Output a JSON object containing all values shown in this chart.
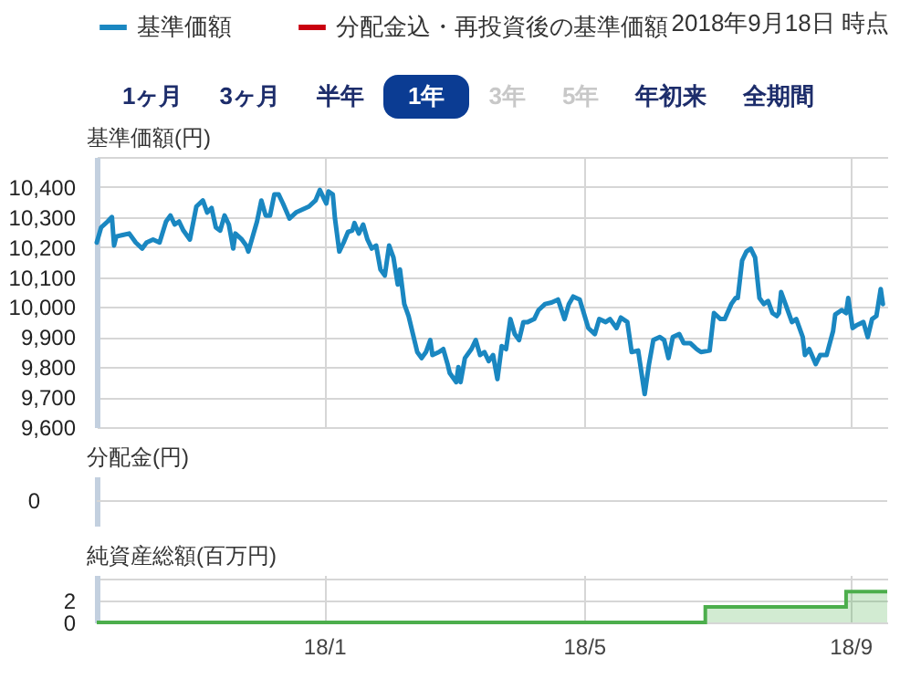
{
  "chart_data": [
    {
      "type": "line",
      "ylabel": "基準価額(円)",
      "legend": "top left",
      "grid": true,
      "tick_labels": "y",
      "annotations": [
        "2018年9月18日 時点",
        "1ヶ月",
        "3ヶ月",
        "半年",
        "1年",
        "3年",
        "5年",
        "年初来",
        "全期間"
      ],
      "xlim": [
        "2017-09-18",
        "2018-09-18"
      ],
      "xticks": [
        {
          "value": "2018-01-01",
          "label": null
        },
        {
          "value": "2018-05-01",
          "label": null
        },
        {
          "value": "2018-09-01",
          "label": null
        }
      ],
      "ylim": [
        9600,
        10500
      ],
      "yticks": [
        {
          "value": 9600,
          "label": "9,600"
        },
        {
          "value": 9700,
          "label": "9,700"
        },
        {
          "value": 9800,
          "label": "9,800"
        },
        {
          "value": 9900,
          "label": "9,900"
        },
        {
          "value": 10000,
          "label": "10,000"
        },
        {
          "value": 10100,
          "label": "10,100"
        },
        {
          "value": 10200,
          "label": "10,200"
        },
        {
          "value": 10300,
          "label": "10,300"
        },
        {
          "value": 10400,
          "label": "10,400"
        },
        {
          "value": 10500,
          "label": null
        }
      ],
      "x": [
        "2017-09-18",
        "2017-09-20",
        "2017-09-23",
        "2017-09-25",
        "2017-09-26",
        "2017-09-27",
        "2017-09-30",
        "2017-10-03",
        "2017-10-06",
        "2017-10-09",
        "2017-10-11",
        "2017-10-14",
        "2017-10-17",
        "2017-10-20",
        "2017-10-22",
        "2017-10-24",
        "2017-10-26",
        "2017-10-28",
        "2017-10-31",
        "2017-11-03",
        "2017-11-06",
        "2017-11-08",
        "2017-11-10",
        "2017-11-12",
        "2017-11-14",
        "2017-11-16",
        "2017-11-18",
        "2017-11-20",
        "2017-11-21",
        "2017-11-24",
        "2017-11-26",
        "2017-11-27",
        "2017-11-29",
        "2017-12-01",
        "2017-12-03",
        "2017-12-05",
        "2017-12-07",
        "2017-12-09",
        "2017-12-11",
        "2017-12-13",
        "2017-12-16",
        "2017-12-19",
        "2017-12-22",
        "2017-12-25",
        "2017-12-28",
        "2017-12-30",
        "2018-01-01",
        "2018-01-02",
        "2018-01-03",
        "2018-01-05",
        "2018-01-06",
        "2018-01-08",
        "2018-01-10",
        "2018-01-12",
        "2018-01-14",
        "2018-01-15",
        "2018-01-17",
        "2018-01-19",
        "2018-01-21",
        "2018-01-23",
        "2018-01-25",
        "2018-01-27",
        "2018-01-29",
        "2018-01-31",
        "2018-02-02",
        "2018-02-04",
        "2018-02-05",
        "2018-02-07",
        "2018-02-09",
        "2018-02-11",
        "2018-02-13",
        "2018-02-15",
        "2018-02-17",
        "2018-02-19",
        "2018-02-20",
        "2018-02-23",
        "2018-02-25",
        "2018-02-27",
        "2018-02-28",
        "2018-03-03",
        "2018-03-04",
        "2018-03-05",
        "2018-03-07",
        "2018-03-10",
        "2018-03-12",
        "2018-03-14",
        "2018-03-16",
        "2018-03-18",
        "2018-03-20",
        "2018-03-22",
        "2018-03-24",
        "2018-03-26",
        "2018-03-28",
        "2018-03-30",
        "2018-04-01",
        "2018-04-03",
        "2018-04-05",
        "2018-04-08",
        "2018-04-10",
        "2018-04-13",
        "2018-04-16",
        "2018-04-19",
        "2018-04-22",
        "2018-04-24",
        "2018-04-26",
        "2018-04-29",
        "2018-05-03",
        "2018-05-06",
        "2018-05-08",
        "2018-05-11",
        "2018-05-13",
        "2018-05-16",
        "2018-05-18",
        "2018-05-21",
        "2018-05-23",
        "2018-05-26",
        "2018-05-29",
        "2018-05-31",
        "2018-06-02",
        "2018-06-05",
        "2018-06-07",
        "2018-06-09",
        "2018-06-11",
        "2018-06-14",
        "2018-06-16",
        "2018-06-19",
        "2018-06-22",
        "2018-06-24",
        "2018-06-28",
        "2018-06-30",
        "2018-07-03",
        "2018-07-05",
        "2018-07-08",
        "2018-07-10",
        "2018-07-11",
        "2018-07-13",
        "2018-07-15",
        "2018-07-17",
        "2018-07-19",
        "2018-07-21",
        "2018-07-23",
        "2018-07-25",
        "2018-07-27",
        "2018-07-29",
        "2018-07-30",
        "2018-07-31",
        "2018-08-02",
        "2018-08-05",
        "2018-08-07",
        "2018-08-10",
        "2018-08-11",
        "2018-08-13",
        "2018-08-16",
        "2018-08-18",
        "2018-08-21",
        "2018-08-24",
        "2018-08-25",
        "2018-08-28",
        "2018-08-30",
        "2018-08-31",
        "2018-09-02",
        "2018-09-04",
        "2018-09-07",
        "2018-09-09",
        "2018-09-11",
        "2018-09-13",
        "2018-09-15",
        "2018-09-16"
      ],
      "series": [
        {
          "name": "基準価額",
          "color": "#1a87c1",
          "values": [
            10215,
            10265,
            10285,
            10300,
            10205,
            10235,
            10240,
            10245,
            10215,
            10195,
            10215,
            10225,
            10215,
            10285,
            10305,
            10275,
            10285,
            10255,
            10225,
            10335,
            10355,
            10315,
            10330,
            10265,
            10255,
            10305,
            10275,
            10195,
            10245,
            10225,
            10205,
            10185,
            10235,
            10285,
            10355,
            10305,
            10305,
            10375,
            10375,
            10345,
            10295,
            10315,
            10325,
            10335,
            10355,
            10390,
            10360,
            10345,
            10385,
            10375,
            10295,
            10185,
            10215,
            10250,
            10255,
            10280,
            10245,
            10275,
            10225,
            10195,
            10205,
            10125,
            10105,
            10205,
            10165,
            10075,
            10125,
            10010,
            9970,
            9910,
            9850,
            9830,
            9850,
            9890,
            9840,
            9850,
            9860,
            9810,
            9780,
            9750,
            9800,
            9750,
            9830,
            9860,
            9890,
            9840,
            9850,
            9820,
            9840,
            9760,
            9870,
            9860,
            9960,
            9910,
            9890,
            9950,
            9950,
            9960,
            9990,
            10010,
            10015,
            10025,
            9960,
            10010,
            10035,
            10025,
            9930,
            9910,
            9960,
            9950,
            9960,
            9930,
            9965,
            9950,
            9850,
            9855,
            9710,
            9810,
            9890,
            9900,
            9890,
            9830,
            9900,
            9910,
            9880,
            9880,
            9860,
            9850,
            9855,
            9980,
            9960,
            9960,
            10010,
            10030,
            10030,
            10155,
            10185,
            10195,
            10165,
            10030,
            10010,
            10020,
            9980,
            9970,
            9980,
            10050,
            10010,
            9950,
            9960,
            9900,
            9840,
            9860,
            9810,
            9840,
            9840,
            9920,
            9975,
            9990,
            9980,
            10030,
            9930,
            9940,
            9950,
            9900,
            9960,
            9970,
            10060,
            10010
          ]
        },
        {
          "name": "分配金込・再投資後の基準価額",
          "color": "#c9000f",
          "values": [
            null,
            null,
            null,
            null,
            null,
            null,
            null,
            null,
            null,
            null,
            null,
            null,
            null,
            null,
            null,
            null,
            null,
            null,
            null,
            null,
            null,
            null,
            null,
            null,
            null,
            null,
            null,
            null,
            null,
            null,
            null,
            null,
            null,
            null,
            null,
            null,
            null,
            null,
            null,
            null,
            null,
            null,
            null,
            null,
            null,
            null,
            null,
            null,
            null,
            null,
            null,
            null,
            null,
            null,
            null,
            null,
            null,
            null,
            null,
            null,
            null,
            null,
            null,
            null,
            null,
            null,
            null,
            null,
            null,
            null,
            null,
            null,
            null,
            null,
            null,
            null,
            null,
            null,
            null,
            null,
            null,
            null,
            null,
            null,
            null,
            null,
            null,
            null,
            null,
            null,
            null,
            null,
            null,
            null,
            null,
            null,
            null,
            null,
            null,
            null,
            null,
            null,
            null,
            null,
            null,
            null,
            null,
            null,
            null,
            null,
            null,
            null,
            null,
            null,
            null,
            null,
            null,
            null,
            null,
            null,
            null,
            null,
            null,
            null,
            null,
            null,
            null,
            null,
            null,
            null,
            null,
            null,
            null,
            null,
            null,
            null,
            null,
            null,
            null,
            null,
            null,
            null,
            null,
            null,
            null,
            null,
            null,
            null,
            null,
            null,
            null,
            null,
            null,
            null,
            null,
            null,
            null,
            null,
            null,
            null,
            null,
            null,
            null,
            null,
            null,
            null,
            null,
            null
          ]
        }
      ]
    },
    {
      "type": "other",
      "ylabel": "分配金(円)",
      "annotations": [
        "0"
      ]
    },
    {
      "type": "area",
      "ylabel": "純資産総額(百万円)",
      "grid": true,
      "xlim": [
        "2017-09-18",
        "2018-09-18"
      ],
      "xticks": [
        {
          "value": "2018-01-01",
          "label": "18/1"
        },
        {
          "value": "2018-05-01",
          "label": "18/5"
        },
        {
          "value": "2018-09-01",
          "label": "18/9"
        }
      ],
      "ylim": [
        0,
        4.3
      ],
      "yticks": [
        0,
        2,
        {
          "value": 4,
          "label": null
        }
      ],
      "x": [
        "2017-09-18",
        "2018-06-26",
        "2018-08-30",
        "2018-09-18"
      ],
      "series": [
        {
          "color": "#4cae4c",
          "values": [
            0,
            1.4,
            2.8,
            2.8
          ]
        }
      ]
    }
  ]
}
